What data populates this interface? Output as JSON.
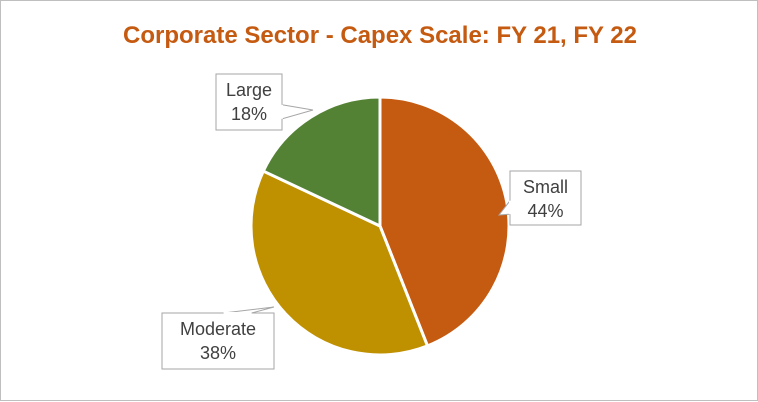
{
  "chart_data": {
    "type": "pie",
    "title": "Corporate Sector - Capex Scale: FY 21, FY 22",
    "slices": [
      {
        "label": "Small",
        "value": 44,
        "display": "44%",
        "color": "#c55a11"
      },
      {
        "label": "Moderate",
        "value": 38,
        "display": "38%",
        "color": "#bf9000"
      },
      {
        "label": "Large",
        "value": 18,
        "display": "18%",
        "color": "#548235"
      }
    ],
    "start_angle_deg": 0,
    "direction": "clockwise",
    "data_labels": "callouts",
    "legend": "none"
  }
}
